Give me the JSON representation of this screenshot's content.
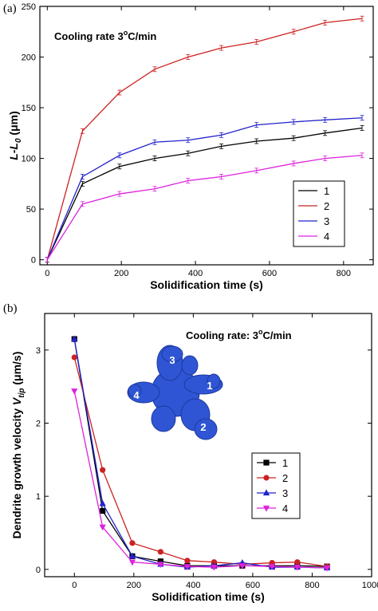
{
  "chart_data": [
    {
      "panel_label": "(a)",
      "type": "line",
      "annotation": "Cooling rate 3°C/min",
      "annotation_parts": {
        "pre": "Cooling rate 3",
        "sup": "o",
        "post": "C/min"
      },
      "xlabel": "Solidification time (s)",
      "ylabel": {
        "main": "L-L",
        "sub": "0",
        "unit": " (μm)"
      },
      "xlim": [
        -20,
        880
      ],
      "ylim": [
        -5,
        250
      ],
      "xticks": [
        0,
        200,
        400,
        600,
        800
      ],
      "yticks": [
        0,
        50,
        100,
        150,
        200,
        250
      ],
      "legend_position": "lower-right",
      "error_bars": true,
      "series": [
        {
          "name": "1",
          "color": "#000000",
          "x": [
            0,
            95,
            195,
            290,
            380,
            470,
            565,
            665,
            750,
            850
          ],
          "y": [
            0,
            75,
            92,
            100,
            105,
            112,
            117,
            120,
            125,
            130
          ]
        },
        {
          "name": "2",
          "color": "#cc2222",
          "x": [
            0,
            95,
            195,
            290,
            380,
            470,
            565,
            665,
            750,
            850
          ],
          "y": [
            0,
            127,
            165,
            188,
            200,
            209,
            215,
            225,
            234,
            238
          ]
        },
        {
          "name": "3",
          "color": "#2222cc",
          "x": [
            0,
            95,
            195,
            290,
            380,
            470,
            565,
            665,
            750,
            850
          ],
          "y": [
            0,
            82,
            103,
            116,
            118,
            123,
            133,
            136,
            138,
            140
          ]
        },
        {
          "name": "4",
          "color": "#dd22dd",
          "x": [
            0,
            95,
            195,
            290,
            380,
            470,
            565,
            665,
            750,
            850
          ],
          "y": [
            0,
            55,
            65,
            70,
            78,
            82,
            88,
            95,
            100,
            103
          ]
        }
      ]
    },
    {
      "panel_label": "(b)",
      "type": "line",
      "annotation": "Cooling rate: 3°C/min",
      "annotation_parts": {
        "pre": "Cooling rate:  3",
        "sup": "o",
        "post": "C/min"
      },
      "xlabel": "Solidification time (s)",
      "ylabel": {
        "main": "Dendrite growth velocity ",
        "italic": "V",
        "sub": "tip",
        "unit": " (μm/s)"
      },
      "xlim": [
        -100,
        1000
      ],
      "ylim": [
        -0.1,
        3.5
      ],
      "xticks": [
        0,
        200,
        400,
        600,
        800,
        1000
      ],
      "yticks": [
        0,
        1,
        2,
        3
      ],
      "legend_position": "lower-right",
      "inset": {
        "description": "3D dendrite image",
        "labels": [
          "1",
          "2",
          "3",
          "4"
        ]
      },
      "series": [
        {
          "name": "1",
          "color": "#000000",
          "marker": "square",
          "x": [
            0,
            95,
            195,
            290,
            380,
            470,
            565,
            665,
            750,
            850
          ],
          "y": [
            3.15,
            0.8,
            0.18,
            0.11,
            0.05,
            0.05,
            0.05,
            0.05,
            0.05,
            0.04
          ]
        },
        {
          "name": "2",
          "color": "#cc2222",
          "marker": "circle",
          "x": [
            0,
            95,
            195,
            290,
            380,
            470,
            565,
            665,
            750,
            850
          ],
          "y": [
            2.9,
            1.36,
            0.36,
            0.24,
            0.12,
            0.1,
            0.07,
            0.09,
            0.1,
            0.04
          ]
        },
        {
          "name": "3",
          "color": "#2222cc",
          "marker": "triangle-up",
          "x": [
            0,
            95,
            195,
            290,
            380,
            470,
            565,
            665,
            750,
            850
          ],
          "y": [
            3.15,
            0.9,
            0.18,
            0.07,
            0.03,
            0.05,
            0.09,
            0.03,
            0.03,
            0.02
          ]
        },
        {
          "name": "4",
          "color": "#dd22dd",
          "marker": "triangle-down",
          "x": [
            0,
            95,
            195,
            290,
            380,
            470,
            565,
            665,
            750,
            850
          ],
          "y": [
            2.44,
            0.58,
            0.1,
            0.07,
            0.04,
            0.03,
            0.05,
            0.04,
            0.03,
            0.02
          ]
        }
      ]
    }
  ]
}
